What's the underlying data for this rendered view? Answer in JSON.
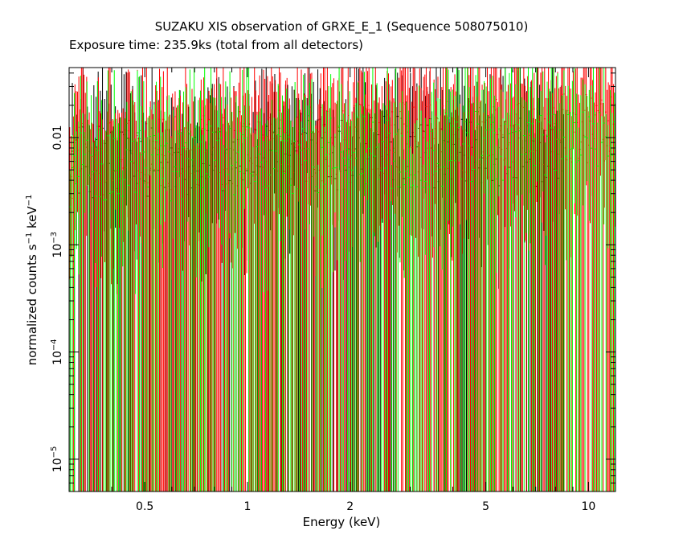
{
  "chart_data": {
    "type": "scatter",
    "title": "SUZAKU XIS observation of GRXE_E_1 (Sequence 508075010)",
    "subtitle": "Exposure time: 235.9ks (total from all detectors)",
    "xlabel": "Energy (keV)",
    "ylabel": {
      "base": "normalized counts s",
      "exp1": "−1",
      "mid": " keV",
      "exp2": "−1"
    },
    "xscale": "log",
    "yscale": "log",
    "xlim": [
      0.3,
      12.0
    ],
    "ylim": [
      5e-06,
      0.045
    ],
    "grid": false,
    "x_ticks": [
      {
        "value": 0.5,
        "label": "0.5"
      },
      {
        "value": 1,
        "label": "1"
      },
      {
        "value": 2,
        "label": "2"
      },
      {
        "value": 5,
        "label": "5"
      },
      {
        "value": 10,
        "label": "10"
      }
    ],
    "y_ticks": [
      {
        "value": 1e-05,
        "base": "10",
        "exp": "−5"
      },
      {
        "value": 0.0001,
        "base": "10",
        "exp": "−4"
      },
      {
        "value": 0.001,
        "base": "10",
        "exp": "−3"
      },
      {
        "value": 0.01,
        "base": "0.01",
        "exp": ""
      }
    ],
    "series": [
      {
        "color": "#000000",
        "range": [
          0.3,
          8.5
        ],
        "bins": 230,
        "level": [
          0.006,
          0.008
        ],
        "scatter": 0.35
      },
      {
        "color": "#ff0000",
        "range": [
          0.3,
          12.0
        ],
        "bins": 420,
        "level": [
          0.006,
          0.012
        ],
        "scatter": 0.35
      },
      {
        "color": "#00ff00",
        "range": [
          0.3,
          12.0
        ],
        "bins": 260,
        "level": [
          0.005,
          0.009
        ],
        "scatter": 0.35
      }
    ]
  }
}
